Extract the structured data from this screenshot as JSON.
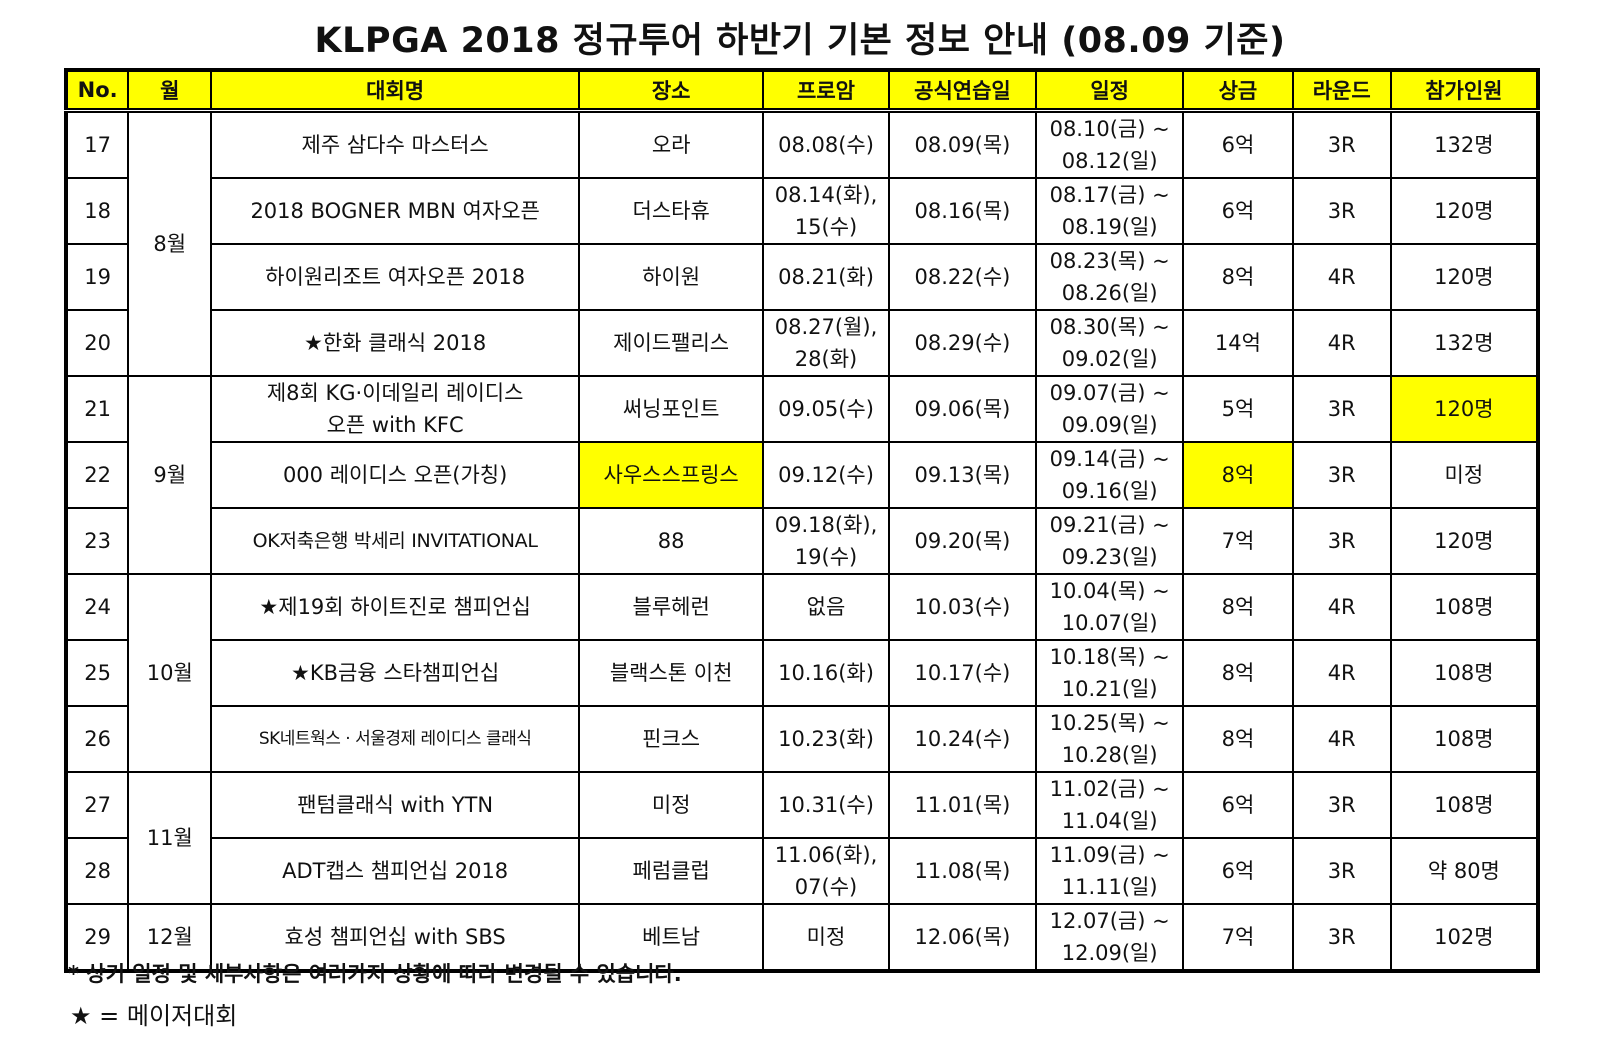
{
  "title": "KLPGA 2018 정규투어 하반기 기본 정보 안내 (08.09 기준)",
  "headers": [
    "No.",
    "월",
    "대회명",
    "장소",
    "프로암",
    "공식연습일",
    "일정",
    "상금",
    "라운드",
    "참가인원"
  ],
  "months": {
    "aug": "8월",
    "sep": "9월",
    "oct": "10월",
    "nov": "11월",
    "dec": "12월"
  },
  "rows": [
    {
      "no": "17",
      "name": "제주 삼다수 마스터스",
      "venue": "오라",
      "proam": [
        "08.08(수)"
      ],
      "practice": "08.09(목)",
      "schedule": [
        "08.10(금) ~",
        "08.12(일)"
      ],
      "prize": "6억",
      "round": "3R",
      "players": "132명"
    },
    {
      "no": "18",
      "name": "2018 BOGNER MBN 여자오픈",
      "venue": "더스타휴",
      "proam": [
        "08.14(화),",
        "15(수)"
      ],
      "practice": "08.16(목)",
      "schedule": [
        "08.17(금) ~",
        "08.19(일)"
      ],
      "prize": "6억",
      "round": "3R",
      "players": "120명"
    },
    {
      "no": "19",
      "name": "하이원리조트 여자오픈 2018",
      "venue": "하이원",
      "proam": [
        "08.21(화)"
      ],
      "practice": "08.22(수)",
      "schedule": [
        "08.23(목) ~",
        "08.26(일)"
      ],
      "prize": "8억",
      "round": "4R",
      "players": "120명"
    },
    {
      "no": "20",
      "name": "★한화 클래식 2018",
      "venue": "제이드팰리스",
      "proam": [
        "08.27(월),",
        "28(화)"
      ],
      "practice": "08.29(수)",
      "schedule": [
        "08.30(목) ~",
        "09.02(일)"
      ],
      "prize": "14억",
      "round": "4R",
      "players": "132명"
    },
    {
      "no": "21",
      "name": [
        "제8회 KG·이데일리 레이디스",
        "오픈 with KFC"
      ],
      "venue": "써닝포인트",
      "proam": [
        "09.05(수)"
      ],
      "practice": "09.06(목)",
      "schedule": [
        "09.07(금) ~",
        "09.09(일)"
      ],
      "prize": "5억",
      "round": "3R",
      "players": "120명"
    },
    {
      "no": "22",
      "name": "000 레이디스 오픈(가칭)",
      "venue": "사우스스프링스",
      "proam": [
        "09.12(수)"
      ],
      "practice": "09.13(목)",
      "schedule": [
        "09.14(금) ~",
        "09.16(일)"
      ],
      "prize": "8억",
      "round": "3R",
      "players": "미정"
    },
    {
      "no": "23",
      "name": "OK저축은행 박세리 INVITATIONAL",
      "venue": "88",
      "proam": [
        "09.18(화),",
        "19(수)"
      ],
      "practice": "09.20(목)",
      "schedule": [
        "09.21(금) ~",
        "09.23(일)"
      ],
      "prize": "7억",
      "round": "3R",
      "players": "120명"
    },
    {
      "no": "24",
      "name": "★제19회 하이트진로 챔피언십",
      "venue": "블루헤런",
      "proam": [
        "없음"
      ],
      "practice": "10.03(수)",
      "schedule": [
        "10.04(목) ~",
        "10.07(일)"
      ],
      "prize": "8억",
      "round": "4R",
      "players": "108명"
    },
    {
      "no": "25",
      "name": "★KB금융 스타챔피언십",
      "venue": "블랙스톤 이천",
      "proam": [
        "10.16(화)"
      ],
      "practice": "10.17(수)",
      "schedule": [
        "10.18(목) ~",
        "10.21(일)"
      ],
      "prize": "8억",
      "round": "4R",
      "players": "108명"
    },
    {
      "no": "26",
      "name": "SK네트웍스 · 서울경제 레이디스 클래식",
      "venue": "핀크스",
      "proam": [
        "10.23(화)"
      ],
      "practice": "10.24(수)",
      "schedule": [
        "10.25(목) ~",
        "10.28(일)"
      ],
      "prize": "8억",
      "round": "4R",
      "players": "108명"
    },
    {
      "no": "27",
      "name": "팬텀클래식 with YTN",
      "venue": "미정",
      "proam": [
        "10.31(수)"
      ],
      "practice": "11.01(목)",
      "schedule": [
        "11.02(금) ~",
        "11.04(일)"
      ],
      "prize": "6억",
      "round": "3R",
      "players": "108명"
    },
    {
      "no": "28",
      "name": "ADT캡스 챔피언십 2018",
      "venue": "페럼클럽",
      "proam": [
        "11.06(화),",
        "07(수)"
      ],
      "practice": "11.08(목)",
      "schedule": [
        "11.09(금) ~",
        "11.11(일)"
      ],
      "prize": "6억",
      "round": "3R",
      "players": "약 80명"
    },
    {
      "no": "29",
      "name": "효성 챔피언십 with SBS",
      "venue": "베트남",
      "proam": [
        "미정"
      ],
      "practice": "12.06(목)",
      "schedule": [
        "12.07(금) ~",
        "12.09(일)"
      ],
      "prize": "7억",
      "round": "3R",
      "players": "102명"
    }
  ],
  "note": "* 상기 일정 및 세부사항은 여러가지 상황에 따라 변경될 수 있습니다.",
  "legend": "★ = 메이저대회",
  "colors": {
    "highlight": "#ffff00",
    "border": "#000000"
  }
}
